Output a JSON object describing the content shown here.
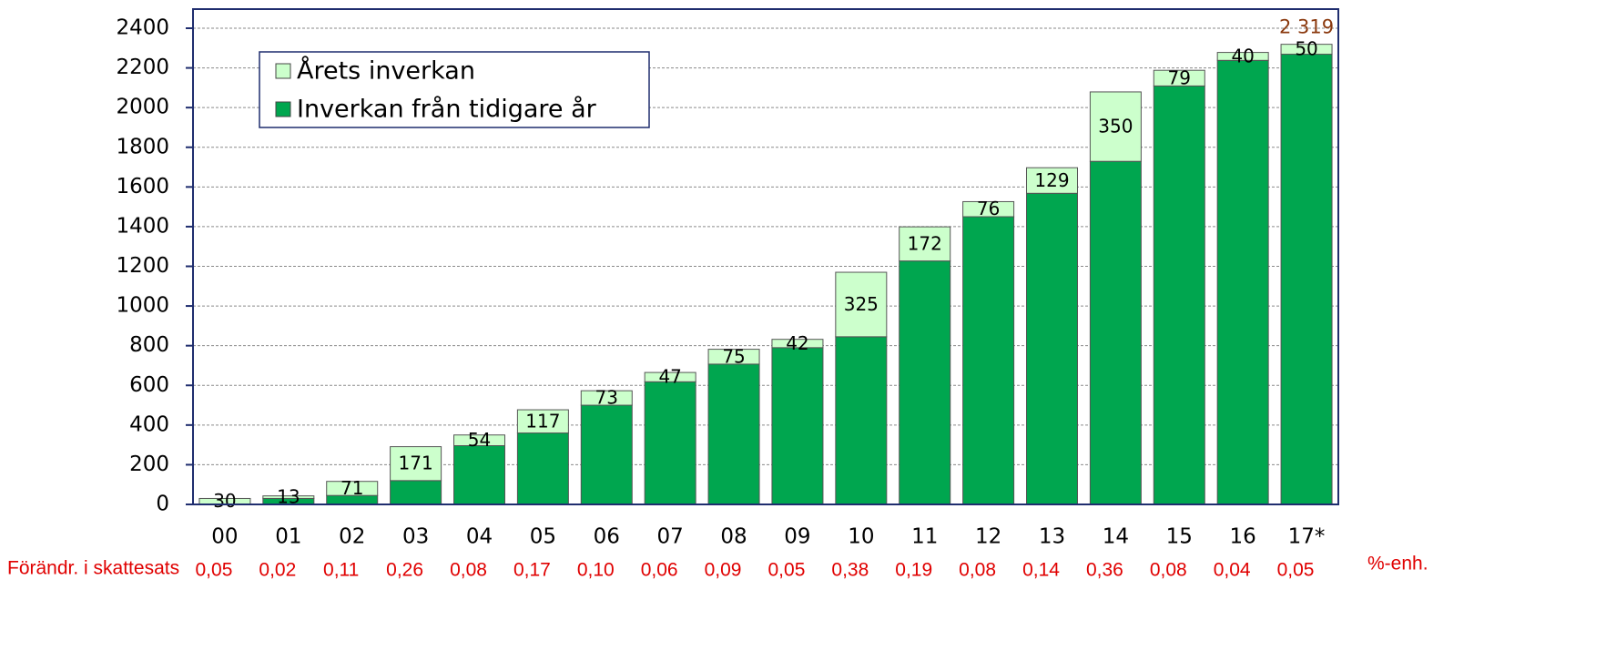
{
  "chart_data": {
    "type": "stacked_bar",
    "categories": [
      "00",
      "01",
      "02",
      "03",
      "04",
      "05",
      "06",
      "07",
      "08",
      "09",
      "10",
      "11",
      "12",
      "13",
      "14",
      "15",
      "16",
      "17*"
    ],
    "series": [
      {
        "name": "Inverkan från tidigare år",
        "color": "#00a64f",
        "values": [
          0,
          30,
          45,
          120,
          296,
          360,
          500,
          618,
          707,
          790,
          845,
          1227,
          1450,
          1568,
          1729,
          2109,
          2238,
          2269
        ]
      },
      {
        "name": "Årets inverkan",
        "color": "#ccffcc",
        "values": [
          30,
          13,
          71,
          171,
          54,
          117,
          73,
          47,
          75,
          42,
          325,
          172,
          76,
          129,
          350,
          79,
          40,
          50
        ]
      }
    ],
    "ylim": [
      0,
      2400
    ],
    "yticks": [
      0,
      200,
      400,
      600,
      800,
      1000,
      1200,
      1400,
      1600,
      1800,
      2000,
      2200,
      2400
    ],
    "grid": true,
    "annotation": {
      "value": 2319,
      "label": "2 319"
    },
    "rate_change": {
      "title": "Förändr. i skattesats",
      "unit": "%-enh.",
      "values": [
        0.05,
        0.02,
        0.11,
        0.26,
        0.08,
        0.17,
        0.1,
        0.06,
        0.09,
        0.05,
        0.38,
        0.19,
        0.08,
        0.14,
        0.36,
        0.08,
        0.04,
        0.05
      ],
      "value_labels": [
        "0,05",
        "0,02",
        "0,11",
        "0,26",
        "0,08",
        "0,17",
        "0,10",
        "0,06",
        "0,09",
        "0,05",
        "0,38",
        "0,19",
        "0,08",
        "0,14",
        "0,36",
        "0,08",
        "0,04",
        "0,05"
      ]
    }
  }
}
